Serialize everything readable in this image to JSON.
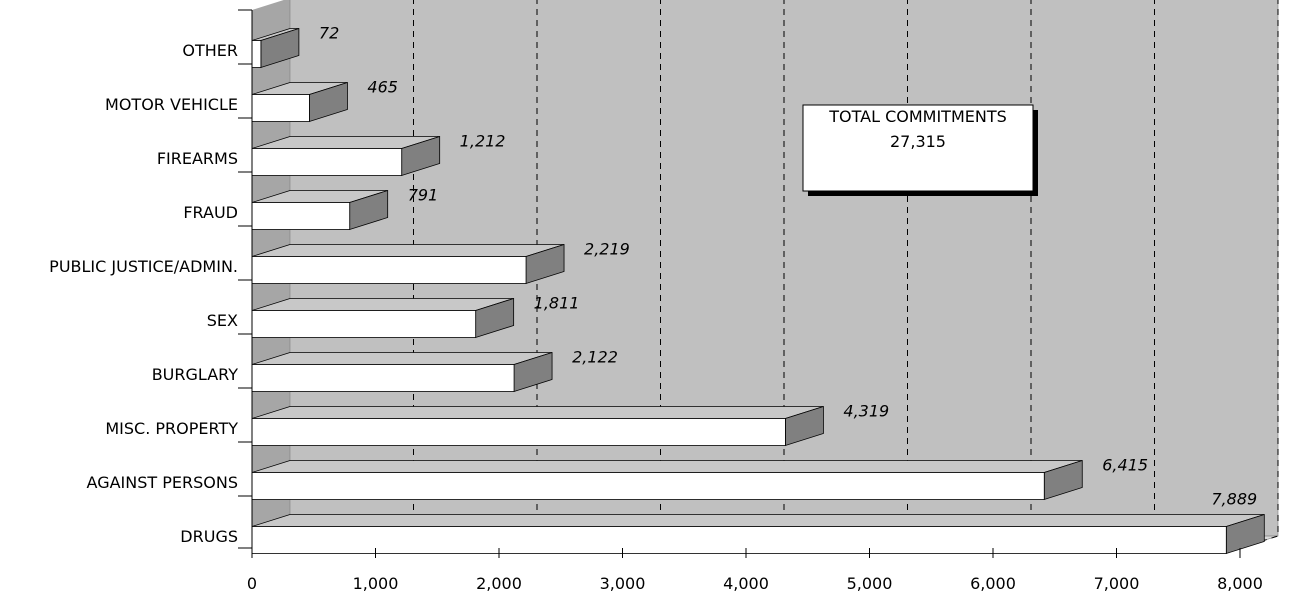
{
  "chart_data": {
    "type": "bar",
    "orientation": "horizontal",
    "three_d": true,
    "categories": [
      "OTHER",
      "MOTOR VEHICLE",
      "FIREARMS",
      "FRAUD",
      "PUBLIC JUSTICE/ADMIN.",
      "SEX",
      "BURGLARY",
      "MISC. PROPERTY",
      "AGAINST PERSONS",
      "DRUGS"
    ],
    "values": [
      72,
      465,
      1212,
      791,
      2219,
      1811,
      2122,
      4319,
      6415,
      7889
    ],
    "value_labels": [
      "72",
      "465",
      "1,212",
      "791",
      "2,219",
      "1,811",
      "2,122",
      "4,319",
      "6,415",
      "7,889"
    ],
    "xlim": [
      0,
      8000
    ],
    "xticks": [
      0,
      1000,
      2000,
      3000,
      4000,
      5000,
      6000,
      7000,
      8000
    ],
    "xtick_labels": [
      "0",
      "1,000",
      "2,000",
      "3,000",
      "4,000",
      "5,000",
      "6,000",
      "7,000",
      "8,000"
    ],
    "grid": "vertical dashed",
    "annotation": {
      "line1": "TOTAL COMMITMENTS",
      "line2": "27,315"
    },
    "colors": {
      "plot_background": "#c0c0c0",
      "bar_front": "#ffffff",
      "bar_side": "#808080",
      "bar_top": "#c8c8c8",
      "floor": "#d9d9d9",
      "side_wall": "#a6a6a6"
    }
  }
}
